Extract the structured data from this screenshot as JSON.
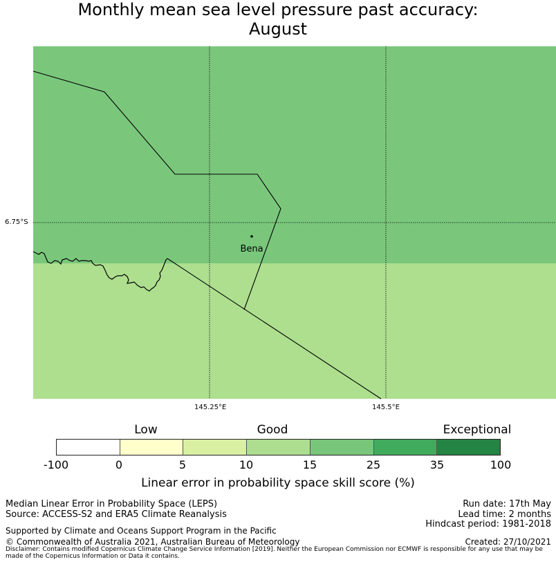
{
  "title": {
    "line1": "Monthly mean sea level pressure past accuracy:",
    "line2": "August"
  },
  "map": {
    "lat_ticks": [
      "6.75°S"
    ],
    "lon_ticks": [
      "145.25°E",
      "145.5°E"
    ],
    "place": {
      "name": "Bena"
    },
    "regions": [
      {
        "name": "north",
        "category": "15 to 25",
        "color": "#7ac77c"
      },
      {
        "name": "south",
        "category": "10 to 15",
        "color": "#addf8e"
      }
    ]
  },
  "colorbar": {
    "categories": [
      "Low",
      "Good",
      "Exceptional"
    ],
    "ticks": [
      "-100",
      "0",
      "5",
      "10",
      "15",
      "25",
      "35",
      "100"
    ],
    "segments": [
      {
        "from": -100,
        "to": 0,
        "color": "#ffffff"
      },
      {
        "from": 0,
        "to": 5,
        "color": "#ffffcc"
      },
      {
        "from": 5,
        "to": 10,
        "color": "#d9f0a3"
      },
      {
        "from": 10,
        "to": 15,
        "color": "#addd8e"
      },
      {
        "from": 15,
        "to": 25,
        "color": "#78c679"
      },
      {
        "from": 25,
        "to": 35,
        "color": "#41ab5d"
      },
      {
        "from": 35,
        "to": 100,
        "color": "#238443"
      }
    ],
    "label": "Linear error in probability space skill score (%)"
  },
  "footer": {
    "left": {
      "line1": "Median Linear Error in Probability Space (LEPS)",
      "line2": "Source: ACCESS-S2 and ERA5 Climate Reanalysis",
      "line3": "Supported by Climate and Oceans Support Program in the Pacific",
      "line4": "© Commonwealth of Australia 2021, Australian Bureau of Meteorology"
    },
    "right": {
      "run_date": "Run date: 17th May",
      "lead_time": "Lead time: 2 months",
      "hindcast": "Hindcast period: 1981-2018",
      "created": "Created: 27/10/2021"
    },
    "disclaimer": "Disclaimer: Contains modified Copernicus Climate Change Service Information [2019]. Neither the European Commission nor ECMWF is responsible for any use that may be made of the Copernicus Information or Data it contains."
  }
}
